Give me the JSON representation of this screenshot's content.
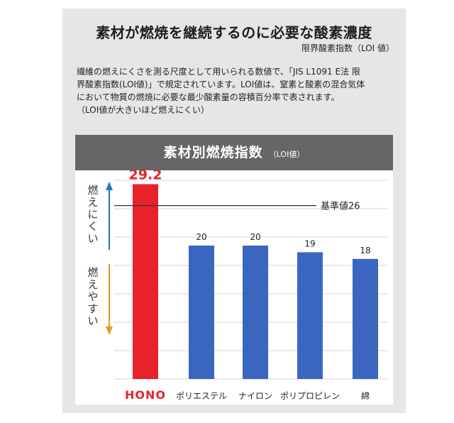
{
  "header": {
    "title": "素材が燃焼を継続するのに必要な酸素濃度",
    "subtitle": "限界酸素指数（LOI 値）"
  },
  "description": {
    "lines": [
      "繊維の燃えにくさを測る尺度として用いられる数値で、「JIS L1091 E法 限",
      "界酸素指数(LOI値)」で規定されています。LOI値は、窒素と酸素の混合気体",
      "において物質の燃焼に必要な最少酸素量の容積百分率で表されます。",
      "（LOI値が大きいほど燃えにくい）"
    ]
  },
  "legend": {
    "hard_to_burn": "燃えにくい",
    "easy_to_burn": "燃えやすい"
  },
  "colors": {
    "highlight": "#e8222a",
    "bar": "#3a66bf",
    "arrow_up": "#1d79c0",
    "arrow_down": "#e69a1c",
    "header_bg": "#666666",
    "panel_bg": "#e6e6e6"
  },
  "chart_data": {
    "type": "bar",
    "title": "素材別燃焼指数",
    "unit": "（LOI値）",
    "categories": [
      "HONO",
      "ポリエステル",
      "ナイロン",
      "ポリプロピレン",
      "綿"
    ],
    "values": [
      29.2,
      20,
      20,
      19,
      18
    ],
    "value_labels": [
      "29.2",
      "20",
      "20",
      "19",
      "18"
    ],
    "highlight_index": 0,
    "reference_line": {
      "value": 26,
      "label": "基準値26"
    },
    "ylim": [
      0,
      30
    ],
    "grid": true,
    "xlabel": "",
    "ylabel": ""
  }
}
